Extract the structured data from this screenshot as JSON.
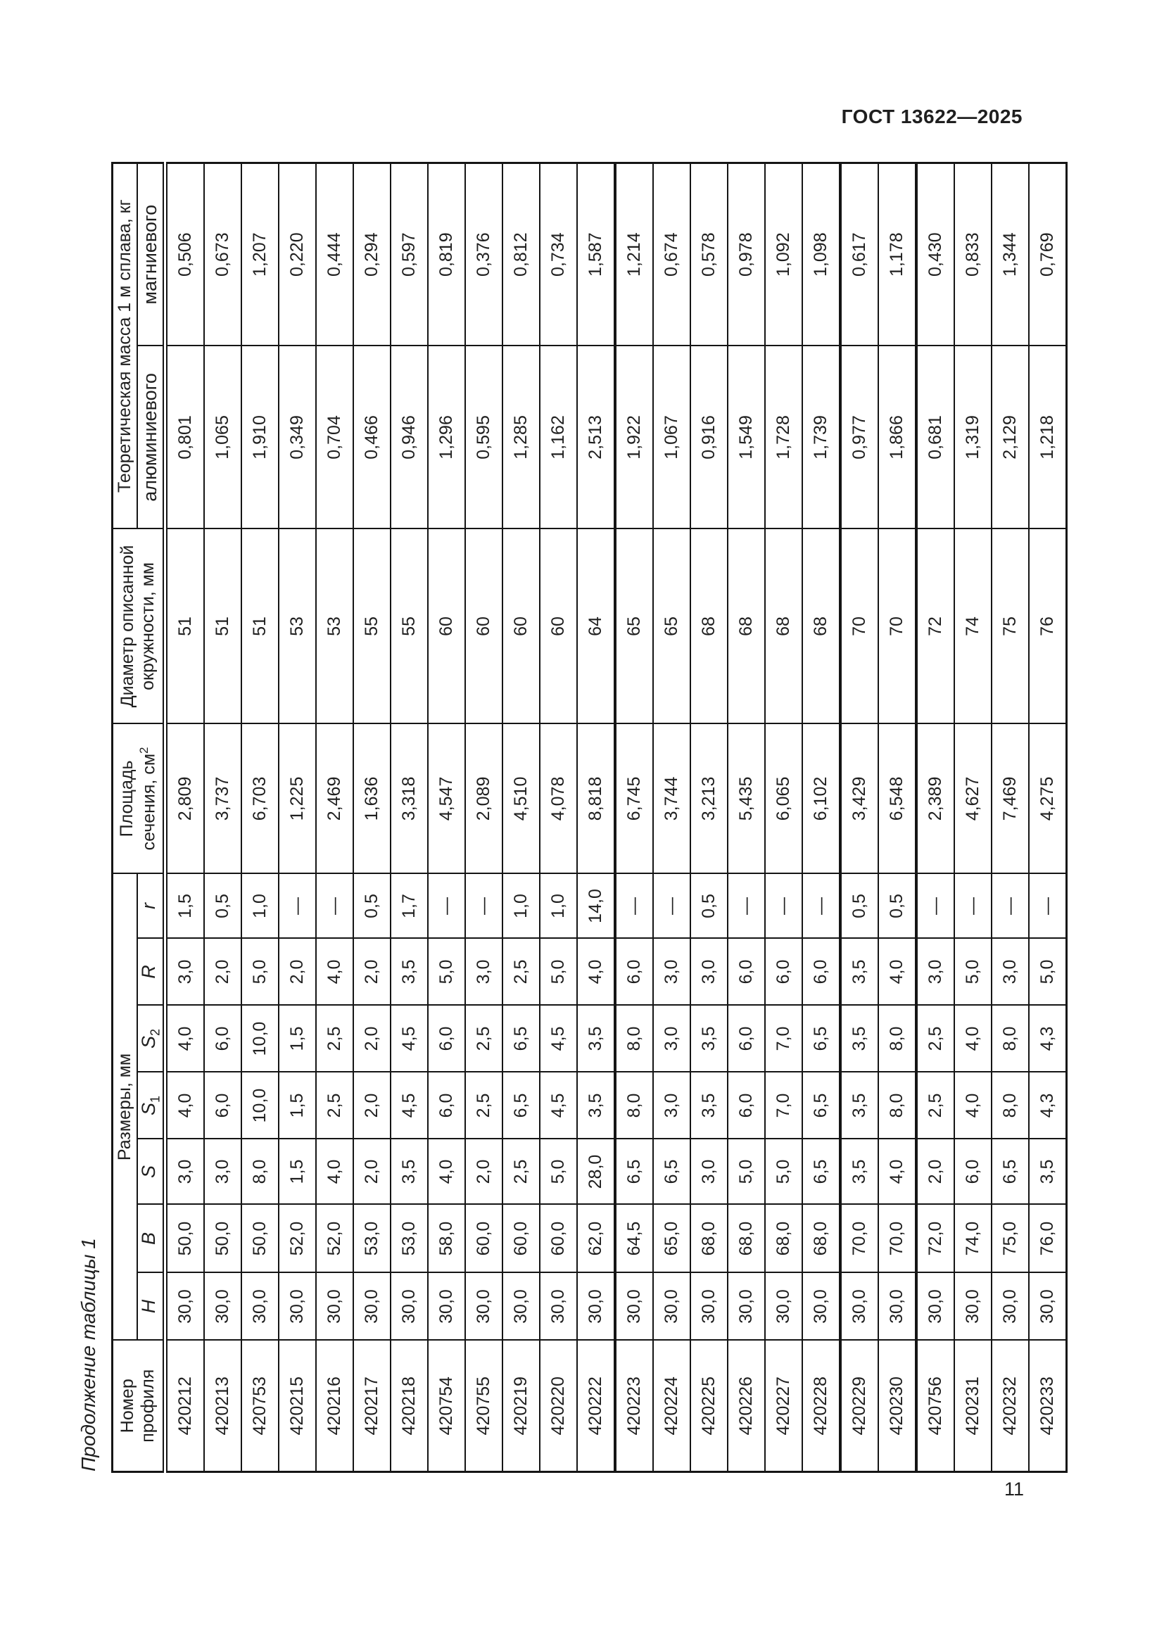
{
  "page": {
    "standard_ref": "ГОСТ 13622—2025",
    "page_number": "11",
    "table_caption": "Продолжение таблицы 1"
  },
  "table": {
    "headers": {
      "profile_l1": "Номер",
      "profile_l2": "профиля",
      "dimensions_group": "Размеры, мм",
      "dim_cols": [
        {
          "base": "H",
          "sub": ""
        },
        {
          "base": "B",
          "sub": ""
        },
        {
          "base": "S",
          "sub": ""
        },
        {
          "base": "S",
          "sub": "1"
        },
        {
          "base": "S",
          "sub": "2"
        },
        {
          "base": "R",
          "sub": ""
        },
        {
          "base": "r",
          "sub": ""
        }
      ],
      "area_l1": "Площадь",
      "area_l2": "сечения, см",
      "area_sup": "2",
      "diameter_l1": "Диаметр описанной",
      "diameter_l2": "окружности, мм",
      "mass_group": "Теоретическая масса 1 м сплава, кг",
      "mass_cols": [
        "алюминиевого",
        "магниевого"
      ]
    },
    "columns_order": [
      "Номер профиля",
      "H",
      "B",
      "S",
      "S1",
      "S2",
      "R",
      "r",
      "Площадь сечения, см2",
      "Диаметр описанной окружности, мм",
      "алюминиевого",
      "магниевого"
    ],
    "row_group_breaks": [
      12,
      18,
      20
    ],
    "rows": [
      [
        "420212",
        "30,0",
        "50,0",
        "3,0",
        "4,0",
        "4,0",
        "3,0",
        "1,5",
        "2,809",
        "51",
        "0,801",
        "0,506"
      ],
      [
        "420213",
        "30,0",
        "50,0",
        "3,0",
        "6,0",
        "6,0",
        "2,0",
        "0,5",
        "3,737",
        "51",
        "1,065",
        "0,673"
      ],
      [
        "420753",
        "30,0",
        "50,0",
        "8,0",
        "10,0",
        "10,0",
        "5,0",
        "1,0",
        "6,703",
        "51",
        "1,910",
        "1,207"
      ],
      [
        "420215",
        "30,0",
        "52,0",
        "1,5",
        "1,5",
        "1,5",
        "2,0",
        "—",
        "1,225",
        "53",
        "0,349",
        "0,220"
      ],
      [
        "420216",
        "30,0",
        "52,0",
        "4,0",
        "2,5",
        "2,5",
        "4,0",
        "—",
        "2,469",
        "53",
        "0,704",
        "0,444"
      ],
      [
        "420217",
        "30,0",
        "53,0",
        "2,0",
        "2,0",
        "2,0",
        "2,0",
        "0,5",
        "1,636",
        "55",
        "0,466",
        "0,294"
      ],
      [
        "420218",
        "30,0",
        "53,0",
        "3,5",
        "4,5",
        "4,5",
        "3,5",
        "1,7",
        "3,318",
        "55",
        "0,946",
        "0,597"
      ],
      [
        "420754",
        "30,0",
        "58,0",
        "4,0",
        "6,0",
        "6,0",
        "5,0",
        "—",
        "4,547",
        "60",
        "1,296",
        "0,819"
      ],
      [
        "420755",
        "30,0",
        "60,0",
        "2,0",
        "2,5",
        "2,5",
        "3,0",
        "—",
        "2,089",
        "60",
        "0,595",
        "0,376"
      ],
      [
        "420219",
        "30,0",
        "60,0",
        "2,5",
        "6,5",
        "6,5",
        "2,5",
        "1,0",
        "4,510",
        "60",
        "1,285",
        "0,812"
      ],
      [
        "420220",
        "30,0",
        "60,0",
        "5,0",
        "4,5",
        "4,5",
        "5,0",
        "1,0",
        "4,078",
        "60",
        "1,162",
        "0,734"
      ],
      [
        "420222",
        "30,0",
        "62,0",
        "28,0",
        "3,5",
        "3,5",
        "4,0",
        "14,0",
        "8,818",
        "64",
        "2,513",
        "1,587"
      ],
      [
        "420223",
        "30,0",
        "64,5",
        "6,5",
        "8,0",
        "8,0",
        "6,0",
        "—",
        "6,745",
        "65",
        "1,922",
        "1,214"
      ],
      [
        "420224",
        "30,0",
        "65,0",
        "6,5",
        "3,0",
        "3,0",
        "3,0",
        "—",
        "3,744",
        "65",
        "1,067",
        "0,674"
      ],
      [
        "420225",
        "30,0",
        "68,0",
        "3,0",
        "3,5",
        "3,5",
        "3,0",
        "0,5",
        "3,213",
        "68",
        "0,916",
        "0,578"
      ],
      [
        "420226",
        "30,0",
        "68,0",
        "5,0",
        "6,0",
        "6,0",
        "6,0",
        "—",
        "5,435",
        "68",
        "1,549",
        "0,978"
      ],
      [
        "420227",
        "30,0",
        "68,0",
        "5,0",
        "7,0",
        "7,0",
        "6,0",
        "—",
        "6,065",
        "68",
        "1,728",
        "1,092"
      ],
      [
        "420228",
        "30,0",
        "68,0",
        "6,5",
        "6,5",
        "6,5",
        "6,0",
        "—",
        "6,102",
        "68",
        "1,739",
        "1,098"
      ],
      [
        "420229",
        "30,0",
        "70,0",
        "3,5",
        "3,5",
        "3,5",
        "3,5",
        "0,5",
        "3,429",
        "70",
        "0,977",
        "0,617"
      ],
      [
        "420230",
        "30,0",
        "70,0",
        "4,0",
        "8,0",
        "8,0",
        "4,0",
        "0,5",
        "6,548",
        "70",
        "1,866",
        "1,178"
      ],
      [
        "420756",
        "30,0",
        "72,0",
        "2,0",
        "2,5",
        "2,5",
        "3,0",
        "—",
        "2,389",
        "72",
        "0,681",
        "0,430"
      ],
      [
        "420231",
        "30,0",
        "74,0",
        "6,0",
        "4,0",
        "4,0",
        "5,0",
        "—",
        "4,627",
        "74",
        "1,319",
        "0,833"
      ],
      [
        "420232",
        "30,0",
        "75,0",
        "6,5",
        "8,0",
        "8,0",
        "3,0",
        "—",
        "7,469",
        "75",
        "2,129",
        "1,344"
      ],
      [
        "420233",
        "30,0",
        "76,0",
        "3,5",
        "4,3",
        "4,3",
        "5,0",
        "—",
        "4,275",
        "76",
        "1,218",
        "0,769"
      ]
    ]
  }
}
